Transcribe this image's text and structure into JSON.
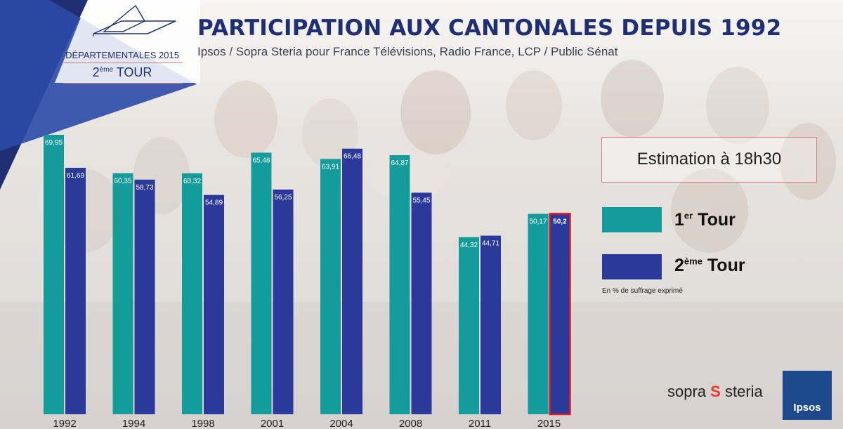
{
  "header": {
    "title": "PARTICIPATION AUX CANTONALES DEPUIS 1992",
    "subtitle": "Ipsos / Sopra Steria pour France Télévisions, Radio France, LCP / Public Sénat"
  },
  "badge": {
    "line1": "DÉPARTEMENTALES 2015",
    "line2_prefix": "2",
    "line2_sup": "ème",
    "line2_suffix": " TOUR"
  },
  "estimate": {
    "text": "Estimation à 18h30"
  },
  "legend": {
    "round1_num": "1",
    "round1_sup": "er",
    "round1_word": " Tour",
    "round2_num": "2",
    "round2_sup": "ème",
    "round2_word": " Tour",
    "note": "En % de suffrage exprimé"
  },
  "logos": {
    "sopra_left": "sopra",
    "sopra_right": "steria",
    "ipsos": "Ipsos"
  },
  "colors": {
    "round1": "#149b9b",
    "round2": "#2b3a9a",
    "title": "#1f2f72",
    "highlight_border": "#d61f26"
  },
  "chart_data": {
    "type": "bar",
    "categories": [
      "1992",
      "1994",
      "1998",
      "2001",
      "2004",
      "2008",
      "2011",
      "2015"
    ],
    "series": [
      {
        "name": "1er Tour",
        "values": [
          69.95,
          60.35,
          60.32,
          65.48,
          63.91,
          64.87,
          44.32,
          50.17
        ],
        "labels": [
          "69,95",
          "60,35",
          "60,32",
          "65,48",
          "63,91",
          "64,87",
          "44,32",
          "50,17"
        ]
      },
      {
        "name": "2ème Tour",
        "values": [
          61.69,
          58.73,
          54.89,
          56.25,
          66.48,
          55.45,
          44.71,
          50.2
        ],
        "labels": [
          "61,69",
          "58,73",
          "54,89",
          "56,25",
          "66,48",
          "55,45",
          "44,71",
          "50,2"
        ]
      }
    ],
    "highlight": {
      "series": 1,
      "category": "2015"
    },
    "ylim": [
      0,
      80
    ]
  }
}
